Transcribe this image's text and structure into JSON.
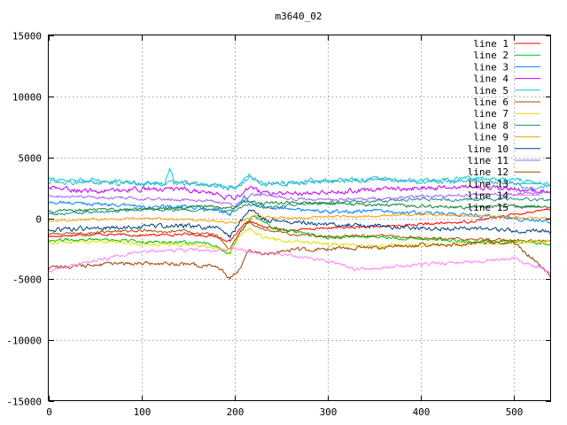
{
  "chart_data": {
    "type": "line",
    "title": "m3640_02",
    "xlabel": "",
    "ylabel": "",
    "xlim": [
      0,
      540
    ],
    "ylim": [
      -15000,
      15000
    ],
    "xticks": [
      0,
      100,
      200,
      300,
      400,
      500
    ],
    "yticks": [
      -15000,
      -10000,
      -5000,
      0,
      5000,
      10000,
      15000
    ],
    "grid": true,
    "legend": "top-right",
    "series": [
      {
        "name": "line 1",
        "color": "#ff0000",
        "noise": 80,
        "x": [
          0,
          50,
          100,
          150,
          180,
          195,
          205,
          215,
          230,
          260,
          300,
          350,
          400,
          450,
          500,
          540
        ],
        "y": [
          -1500,
          -1300,
          -1400,
          -1300,
          -1500,
          -1900,
          -1000,
          -200,
          -700,
          -1000,
          -800,
          -700,
          -500,
          -300,
          300,
          800
        ]
      },
      {
        "name": "line 2",
        "color": "#00c000",
        "noise": 100,
        "x": [
          0,
          50,
          100,
          150,
          180,
          195,
          205,
          220,
          240,
          270,
          300,
          350,
          400,
          450,
          500,
          540
        ],
        "y": [
          -1800,
          -1700,
          -1900,
          -2000,
          -2200,
          -3000,
          -1200,
          300,
          -800,
          -1200,
          -1600,
          -1500,
          -1700,
          -1900,
          -1900,
          -2100
        ]
      },
      {
        "name": "line 3",
        "color": "#0080ff",
        "noise": 120,
        "x": [
          0,
          50,
          100,
          150,
          180,
          195,
          210,
          220,
          240,
          270,
          300,
          350,
          400,
          450,
          500,
          540
        ],
        "y": [
          1300,
          1200,
          1000,
          900,
          700,
          200,
          1800,
          1200,
          900,
          700,
          500,
          600,
          400,
          300,
          0,
          -300
        ]
      },
      {
        "name": "line 4",
        "color": "#c000ff",
        "noise": 150,
        "x": [
          0,
          50,
          100,
          150,
          180,
          200,
          215,
          230,
          260,
          300,
          350,
          400,
          450,
          500,
          540
        ],
        "y": [
          2500,
          2200,
          2400,
          2300,
          2000,
          1500,
          2600,
          2100,
          2000,
          2200,
          2300,
          2500,
          2600,
          2400,
          2200
        ]
      },
      {
        "name": "line 5",
        "color": "#00d0d0",
        "noise": 130,
        "x": [
          0,
          50,
          100,
          125,
          130,
          135,
          150,
          180,
          200,
          215,
          230,
          260,
          300,
          350,
          400,
          450,
          500,
          540
        ],
        "y": [
          3200,
          3100,
          2900,
          2900,
          4200,
          3000,
          2900,
          2800,
          2500,
          3600,
          2800,
          2900,
          3000,
          3200,
          3100,
          3300,
          3200,
          2800
        ]
      },
      {
        "name": "line 6",
        "color": "#a05000",
        "noise": 90,
        "x": [
          0,
          50,
          100,
          150,
          180,
          195,
          205,
          215,
          230,
          260,
          300,
          350,
          400,
          450,
          500,
          540
        ],
        "y": [
          -1300,
          -1200,
          -1000,
          -1100,
          -1400,
          -2600,
          -1200,
          -300,
          -900,
          -1300,
          -1500,
          -1400,
          -1600,
          -1700,
          -1800,
          -1900
        ]
      },
      {
        "name": "line 7",
        "color": "#e0e000",
        "noise": 110,
        "x": [
          0,
          50,
          100,
          150,
          180,
          195,
          205,
          215,
          230,
          260,
          300,
          350,
          400,
          450,
          500,
          540
        ],
        "y": [
          -2000,
          -1900,
          -2100,
          -2200,
          -2400,
          -2800,
          -1500,
          -800,
          -1600,
          -1900,
          -2100,
          -2300,
          -2200,
          -2100,
          -2000,
          -1900
        ]
      },
      {
        "name": "line 8",
        "color": "#209080",
        "noise": 100,
        "x": [
          0,
          50,
          100,
          150,
          180,
          200,
          215,
          230,
          260,
          300,
          350,
          400,
          450,
          500,
          540
        ],
        "y": [
          300,
          500,
          700,
          600,
          700,
          500,
          1200,
          900,
          1100,
          1300,
          1400,
          1600,
          1500,
          1600,
          1500
        ]
      },
      {
        "name": "line 9",
        "color": "#ffa000",
        "noise": 80,
        "x": [
          0,
          50,
          100,
          150,
          180,
          200,
          220,
          260,
          300,
          350,
          400,
          450,
          500,
          540
        ],
        "y": [
          -200,
          -100,
          0,
          -100,
          -200,
          -400,
          200,
          0,
          100,
          200,
          300,
          200,
          100,
          0
        ]
      },
      {
        "name": "line 10",
        "color": "#004080",
        "noise": 140,
        "x": [
          0,
          50,
          100,
          150,
          180,
          195,
          205,
          215,
          230,
          260,
          300,
          350,
          400,
          450,
          500,
          540
        ],
        "y": [
          -1000,
          -800,
          -700,
          -600,
          -800,
          -1500,
          -400,
          800,
          -100,
          -300,
          -500,
          -600,
          -800,
          -900,
          -1000,
          -1100
        ]
      },
      {
        "name": "line 11",
        "color": "#a060ff",
        "noise": 100,
        "x": [
          0,
          50,
          100,
          150,
          180,
          200,
          220,
          260,
          300,
          350,
          400,
          450,
          500,
          540
        ],
        "y": [
          1800,
          1700,
          1600,
          1500,
          1400,
          1000,
          2000,
          1600,
          1500,
          1600,
          1800,
          1900,
          2000,
          2100
        ]
      },
      {
        "name": "line 12",
        "color": "#a04000",
        "noise": 120,
        "x": [
          0,
          50,
          100,
          150,
          180,
          195,
          205,
          215,
          230,
          260,
          300,
          350,
          400,
          450,
          500,
          520,
          540
        ],
        "y": [
          -4100,
          -3800,
          -3700,
          -3800,
          -3900,
          -4900,
          -4200,
          -2500,
          -3000,
          -2600,
          -2500,
          -2400,
          -2200,
          -2100,
          -2000,
          -3300,
          -4800
        ]
      },
      {
        "name": "line 13",
        "color": "#40b0d0",
        "noise": 160,
        "x": [
          0,
          50,
          100,
          150,
          180,
          200,
          215,
          230,
          260,
          300,
          350,
          400,
          450,
          500,
          520,
          540
        ],
        "y": [
          3000,
          2900,
          2800,
          2900,
          2700,
          2400,
          3500,
          2800,
          2900,
          3100,
          3200,
          3000,
          3100,
          2900,
          2400,
          2700
        ]
      },
      {
        "name": "line 14",
        "color": "#ff80ff",
        "noise": 110,
        "x": [
          0,
          50,
          100,
          150,
          180,
          200,
          220,
          260,
          300,
          330,
          350,
          400,
          450,
          500,
          530,
          540
        ],
        "y": [
          -4300,
          -3500,
          -2700,
          -2600,
          -2600,
          -2500,
          -2800,
          -3000,
          -3500,
          -4200,
          -4100,
          -3800,
          -3600,
          -3300,
          -4100,
          -4500
        ]
      },
      {
        "name": "line 15",
        "color": "#108030",
        "noise": 100,
        "x": [
          0,
          50,
          100,
          150,
          180,
          200,
          215,
          230,
          260,
          300,
          350,
          400,
          450,
          500,
          540
        ],
        "y": [
          600,
          700,
          800,
          900,
          1000,
          800,
          1500,
          1200,
          1300,
          1200,
          1100,
          1000,
          900,
          1000,
          900
        ]
      }
    ]
  }
}
